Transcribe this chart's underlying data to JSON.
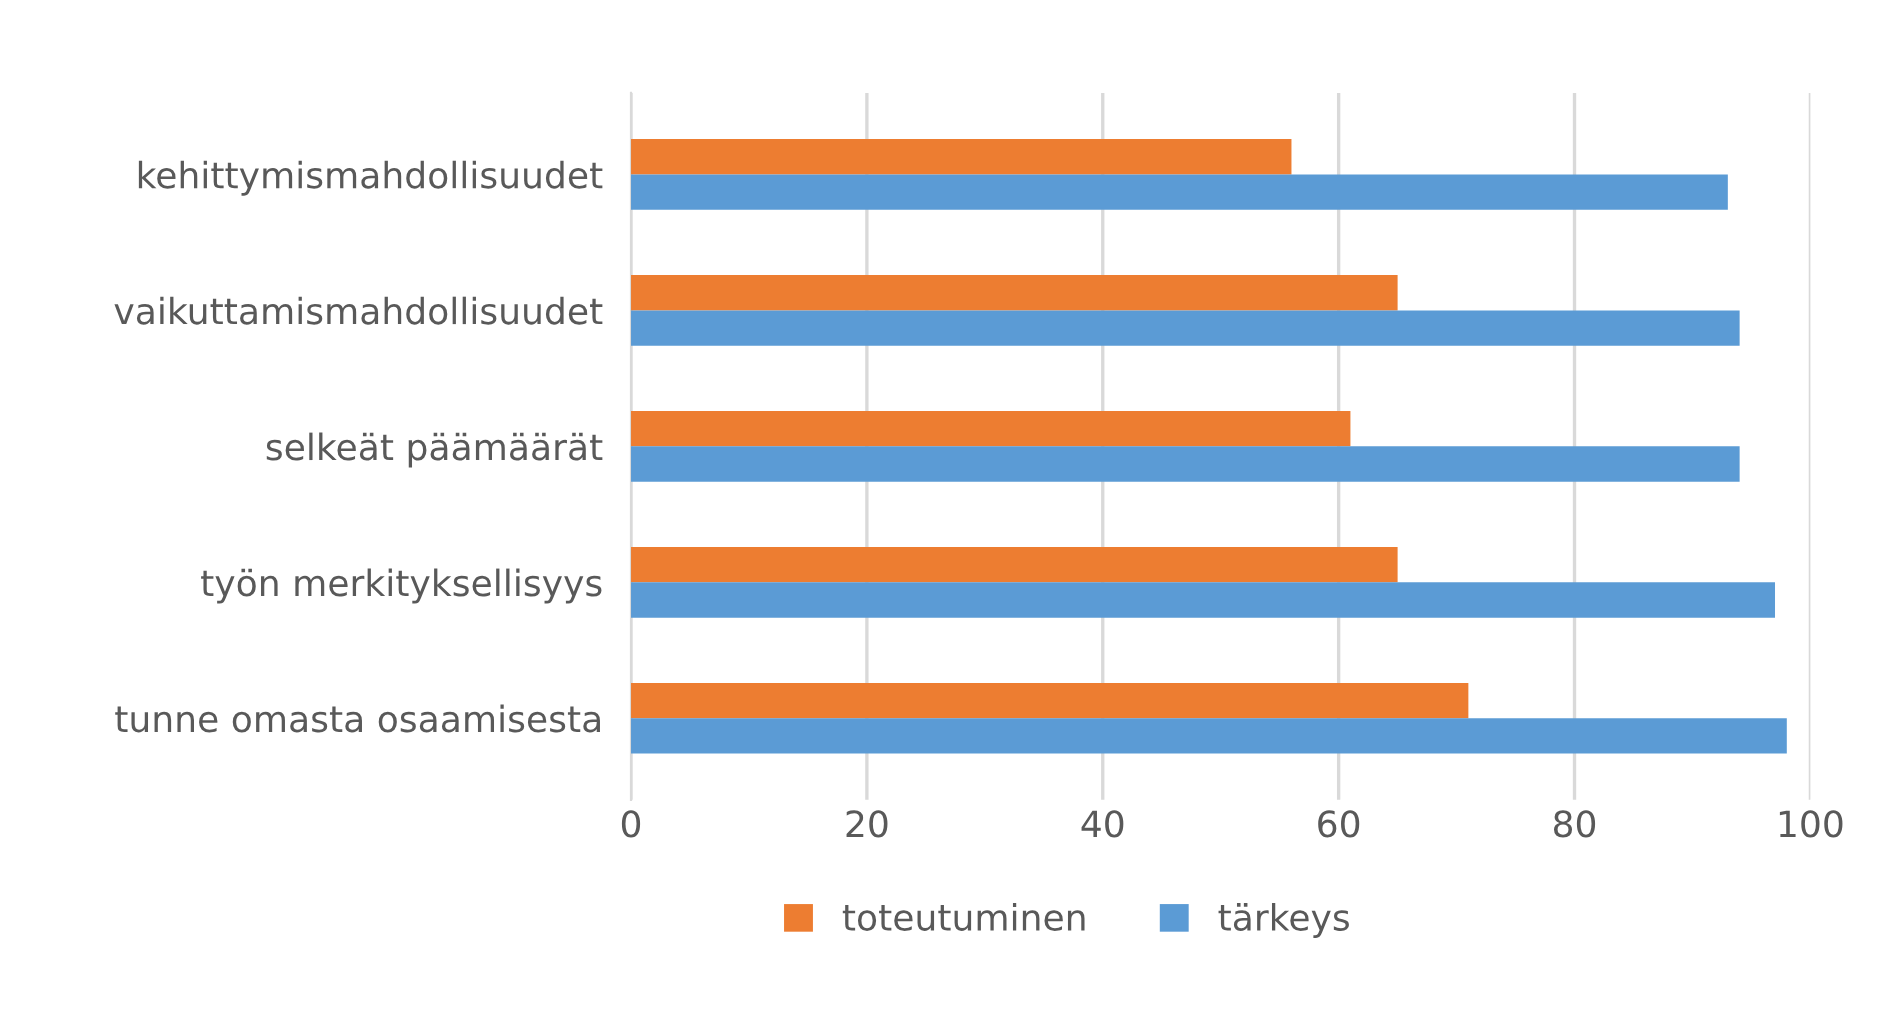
{
  "chart_data": {
    "type": "bar",
    "orientation": "horizontal",
    "categories": [
      "kehittymismahdollisuudet",
      "vaikuttamismahdollisuudet",
      "selkeät päämäärät",
      "työn merkityksellisyys",
      "tunne omasta osaamisesta"
    ],
    "series": [
      {
        "name": "toteutuminen",
        "color": "#ed7d31",
        "values": [
          56,
          65,
          61,
          65,
          71
        ]
      },
      {
        "name": "tärkeys",
        "color": "#5b9bd5",
        "values": [
          93,
          94,
          94,
          97,
          98
        ]
      }
    ],
    "xlim": [
      0,
      100
    ],
    "xticks": [
      0,
      20,
      40,
      60,
      80,
      100
    ],
    "grid": "x",
    "legend": "bottom"
  }
}
